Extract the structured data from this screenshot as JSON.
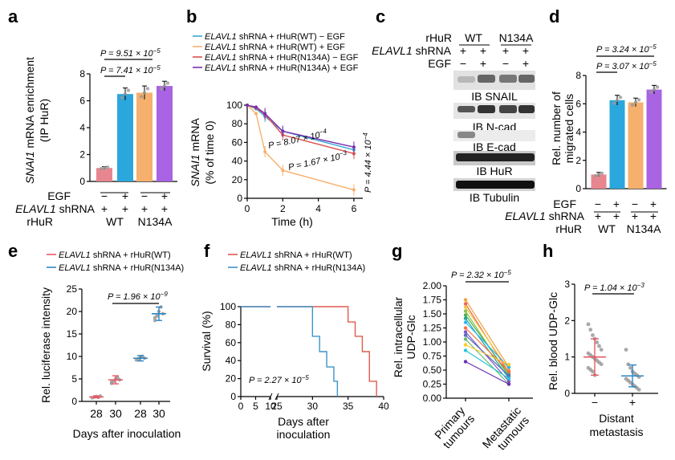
{
  "panel_letters": [
    "a",
    "b",
    "c",
    "d",
    "e",
    "f",
    "g",
    "h"
  ],
  "colors": {
    "pink": "#e8868f",
    "blue": "#2aa7dc",
    "orange": "#f6b06d",
    "purple": "#a864e2",
    "teal": "#3aa9d3",
    "red_line": "#d9534f",
    "dark_red": "#b02636",
    "violet": "#7a2fb2",
    "kaplan_red": "#e05a4e",
    "kaplan_blue": "#3e93c9",
    "ua_red": "#e65a64",
    "ua_blue": "#2e86c1"
  },
  "panel_a": {
    "ylabel_gene": "SNAI1",
    "ylabel_rest": " mRNA enrichment",
    "ylabel_2": "(IP HuR)",
    "p_top": "P = 9.51 × 10",
    "p_top_exp": "−5",
    "p_bottom": "P = 7.41 × 10",
    "p_bottom_exp": "−5",
    "row_egf_label": "EGF",
    "row_shrna_gene": "ELAVL1",
    "row_shrna_rest": " shRNA",
    "row_rhur_label": "rHuR",
    "egf_signs": [
      "−",
      "+",
      "−",
      "+"
    ],
    "shrna_signs": [
      "+",
      "+",
      "+",
      "+"
    ],
    "group_wt": "WT",
    "group_n134a": "N134A"
  },
  "panel_b": {
    "legend": [
      {
        "gene": "ELAVL1",
        "rest": " shRNA + rHuR(WT) − EGF",
        "color": "#3aa9d3"
      },
      {
        "gene": "ELAVL1",
        "rest": " shRNA + rHuR(WT) + EGF",
        "color": "#f6b06d"
      },
      {
        "gene": "ELAVL1",
        "rest": " shRNA + rHuR(N134A) − EGF",
        "color": "#d9534f"
      },
      {
        "gene": "ELAVL1",
        "rest": " shRNA + rHuR(N134A) + EGF",
        "color": "#7a2fb2"
      }
    ],
    "ylabel_gene": "SNAI1",
    "ylabel_rest": " mRNA",
    "ylabel_2": "(% of time 0)",
    "xlabel": "Time (h)",
    "p1": "P = 8.07 × 10",
    "p1_exp": "−4",
    "p2": "P = 1.67 × 10",
    "p2_exp": "−3",
    "p3": "P = 4.44 × 10",
    "p3_exp": "−4"
  },
  "panel_c": {
    "rhur_label": "rHuR",
    "wt": "WT",
    "n134a": "N134A",
    "shrna_gene": "ELAVL1",
    "shrna_rest": " shRNA",
    "egf_label": "EGF",
    "shrna_signs": [
      "+",
      "+",
      "+",
      "+"
    ],
    "egf_signs": [
      "−",
      "+",
      "−",
      "+"
    ],
    "blots": [
      "IB SNAIL",
      "IB N-cad",
      "IB E-cad",
      "IB HuR",
      "IB Tubulin"
    ]
  },
  "panel_d": {
    "ylabel": "Rel. number of",
    "ylabel_2": "migrated cells",
    "p_top": "P = 3.24 × 10",
    "p_top_exp": "−5",
    "p_bottom": "P = 3.07 × 10",
    "p_bottom_exp": "−5",
    "egf_label": "EGF",
    "shrna_gene": "ELAVL1",
    "shrna_rest": " shRNA",
    "rhur_label": "rHuR",
    "egf_signs": [
      "−",
      "+",
      "−",
      "+"
    ],
    "shrna_signs": [
      "+",
      "+",
      "+",
      "+"
    ],
    "group_wt": "WT",
    "group_n134a": "N134A"
  },
  "panel_e": {
    "legend": [
      {
        "gene": "ELAVL1",
        "rest": " shRNA + rHuR(WT)",
        "color": "#e65a64"
      },
      {
        "gene": "ELAVL1",
        "rest": " shRNA + rHuR(N134A)",
        "color": "#2e86c1"
      }
    ],
    "ylabel": "Rel. luciferase intensity",
    "xlabel": "Days after inoculation",
    "p": "P = 1.96 × 10",
    "p_exp": "−9"
  },
  "panel_f": {
    "legend": [
      {
        "gene": "ELAVL1",
        "rest": " shRNA + rHuR(WT)",
        "color": "#e05a4e"
      },
      {
        "gene": "ELAVL1",
        "rest": " shRNA + rHuR(N134A)",
        "color": "#3e93c9"
      }
    ],
    "ylabel": "Survival (%)",
    "xlabel": "Days after",
    "xlabel_2": "inoculation",
    "p": "P = 2.27 × 10",
    "p_exp": "−5"
  },
  "panel_g": {
    "ylabel": "Rel. intracellular",
    "ylabel_2": "UDP-Glc",
    "p": "P = 2.32 × 10",
    "p_exp": "−5",
    "cat1": "Primary",
    "cat1_b": "tumours",
    "cat2": "Metastatic",
    "cat2_b": "tumours"
  },
  "panel_h": {
    "ylabel": "Rel. blood UDP-Glc",
    "p": "P = 1.04 × 10",
    "p_exp": "−3",
    "xlabel": "Distant",
    "xlabel_2": "metastasis"
  },
  "chart_data": [
    {
      "panel": "a",
      "type": "bar",
      "categories": [
        "− EGF WT",
        "+ EGF WT",
        "− EGF N134A",
        "+ EGF N134A"
      ],
      "values": [
        1.0,
        6.5,
        6.6,
        7.1
      ],
      "errors": [
        0.1,
        0.45,
        0.5,
        0.35
      ],
      "ylim": [
        0,
        8
      ],
      "yticks": [
        0,
        2,
        4,
        6,
        8
      ],
      "ylabel": "SNAI1 mRNA enrichment (IP HuR)"
    },
    {
      "panel": "b",
      "type": "line",
      "x": [
        0,
        0.5,
        1,
        2,
        6
      ],
      "xticks": [
        0,
        2,
        4,
        6
      ],
      "yticks": [
        0,
        20,
        40,
        60,
        80,
        100
      ],
      "xlim": [
        0,
        6.5
      ],
      "ylim": [
        0,
        100
      ],
      "series": [
        {
          "name": "ELAVL1 shRNA + rHuR(WT) − EGF",
          "values": [
            100,
            96,
            88,
            72,
            52
          ]
        },
        {
          "name": "ELAVL1 shRNA + rHuR(WT) + EGF",
          "values": [
            100,
            91,
            50,
            30,
            9
          ]
        },
        {
          "name": "ELAVL1 shRNA + rHuR(N134A) − EGF",
          "values": [
            100,
            97,
            90,
            68,
            48
          ]
        },
        {
          "name": "ELAVL1 shRNA + rHuR(N134A) + EGF",
          "values": [
            100,
            98,
            91,
            72,
            55
          ]
        }
      ],
      "xlabel": "Time (h)",
      "ylabel": "SNAI1 mRNA (% of time 0)"
    },
    {
      "panel": "d",
      "type": "bar",
      "categories": [
        "− EGF WT",
        "+ EGF WT",
        "− EGF N134A",
        "+ EGF N134A"
      ],
      "values": [
        1.0,
        6.25,
        6.1,
        7.0
      ],
      "errors": [
        0.15,
        0.35,
        0.3,
        0.3
      ],
      "ylim": [
        0,
        8
      ],
      "yticks": [
        0,
        2,
        4,
        6,
        8
      ],
      "ylabel": "Rel. number of migrated cells"
    },
    {
      "panel": "e",
      "type": "scatter",
      "categories": [
        "28",
        "30",
        "28",
        "30"
      ],
      "means": [
        1.0,
        4.8,
        9.6,
        19.5
      ],
      "sd": [
        0.2,
        0.9,
        0.6,
        1.5
      ],
      "points": [
        [
          0.8,
          1.0,
          1.1,
          0.9,
          1.2
        ],
        [
          4.0,
          4.5,
          5.0,
          5.3,
          4.8,
          4.3
        ],
        [
          9.2,
          9.5,
          9.8,
          10.0,
          9.6
        ],
        [
          18.0,
          19.0,
          20.0,
          21.0,
          19.5,
          18.6
        ]
      ],
      "groups": [
        "ELAVL1 shRNA + rHuR(WT)",
        "ELAVL1 shRNA + rHuR(WT)",
        "ELAVL1 shRNA + rHuR(N134A)",
        "ELAVL1 shRNA + rHuR(N134A)"
      ],
      "ylim": [
        0,
        25
      ],
      "yticks": [
        0,
        5,
        10,
        15,
        20,
        25
      ],
      "ylabel": "Rel. luciferase intensity",
      "xlabel": "Days after inoculation"
    },
    {
      "panel": "f",
      "type": "line",
      "xticks": [
        0,
        5,
        10,
        25,
        30,
        35,
        40
      ],
      "yticks": [
        0,
        20,
        40,
        60,
        80,
        100
      ],
      "series": [
        {
          "name": "ELAVL1 shRNA + rHuR(WT)",
          "steps": [
            [
              0,
              100
            ],
            [
              35,
              100
            ],
            [
              35,
              83
            ],
            [
              36,
              83
            ],
            [
              36,
              67
            ],
            [
              37,
              67
            ],
            [
              37,
              50
            ],
            [
              38,
              50
            ],
            [
              38,
              33
            ],
            [
              38,
              17
            ],
            [
              39,
              17
            ],
            [
              39,
              0
            ]
          ]
        },
        {
          "name": "ELAVL1 shRNA + rHuR(N134A)",
          "steps": [
            [
              0,
              100
            ],
            [
              30,
              100
            ],
            [
              30,
              67
            ],
            [
              31,
              67
            ],
            [
              31,
              50
            ],
            [
              32,
              50
            ],
            [
              32,
              33
            ],
            [
              33,
              33
            ],
            [
              33,
              17
            ],
            [
              33.5,
              17
            ],
            [
              33.5,
              0
            ]
          ]
        }
      ],
      "ylabel": "Survival (%)",
      "xlabel": "Days after inoculation"
    },
    {
      "panel": "g",
      "type": "line",
      "categories": [
        "Primary tumours",
        "Metastatic tumours"
      ],
      "pairs": [
        [
          1.75,
          0.55
        ],
        [
          1.68,
          0.45
        ],
        [
          1.62,
          0.5
        ],
        [
          1.55,
          0.38
        ],
        [
          1.48,
          0.42
        ],
        [
          1.42,
          0.35
        ],
        [
          1.35,
          0.55
        ],
        [
          1.25,
          0.48
        ],
        [
          1.18,
          0.3
        ],
        [
          1.12,
          0.4
        ],
        [
          1.05,
          0.25
        ],
        [
          0.95,
          0.6
        ],
        [
          0.85,
          0.35
        ],
        [
          0.65,
          0.25
        ]
      ],
      "ylim": [
        0,
        2.0
      ],
      "yticks": [
        0,
        0.25,
        0.5,
        0.75,
        1.0,
        1.25,
        1.5,
        1.75,
        2.0
      ],
      "ylabel": "Rel. intracellular UDP-Glc"
    },
    {
      "panel": "h",
      "type": "scatter",
      "categories": [
        "−",
        "+"
      ],
      "means": [
        1.0,
        0.48
      ],
      "sd": [
        0.5,
        0.3
      ],
      "points": [
        [
          1.9,
          1.75,
          1.6,
          1.5,
          1.4,
          1.3,
          1.2,
          1.1,
          1.05,
          1.0,
          0.95,
          0.9,
          0.85,
          0.8,
          0.7,
          0.65,
          0.6,
          0.5
        ],
        [
          1.2,
          0.8,
          0.7,
          0.6,
          0.55,
          0.5,
          0.45,
          0.4,
          0.35,
          0.3,
          0.25,
          0.2,
          0.15,
          0.1
        ]
      ],
      "ylim": [
        0,
        3
      ],
      "yticks": [
        0,
        1,
        2,
        3
      ],
      "ylabel": "Rel. blood UDP-Glc",
      "xlabel": "Distant metastasis"
    }
  ]
}
